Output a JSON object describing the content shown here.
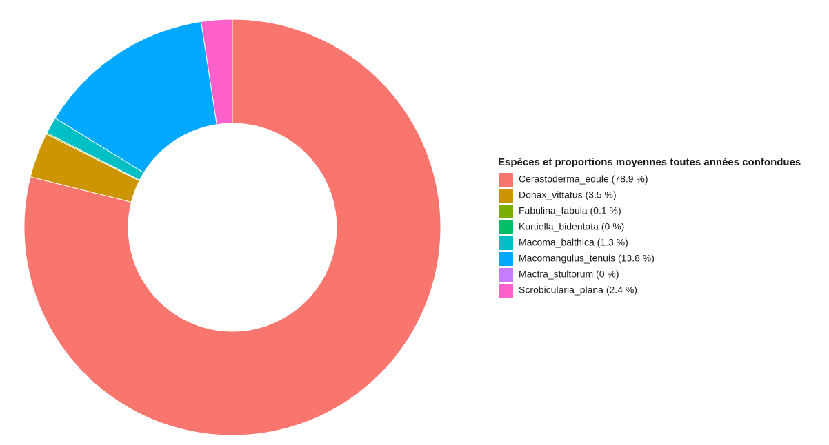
{
  "chart_data": {
    "type": "donut",
    "legend_title": "Espèces et proportions moyennes toutes années confondues",
    "categories": [
      "Cerastoderma_edule (78.9 %)",
      "Donax_vittatus (3.5 %)",
      "Fabulina_fabula (0.1 %)",
      "Kurtiella_bidentata (0 %)",
      "Macoma_balthica (1.3 %)",
      "Macomangulus_tenuis (13.8 %)",
      "Mactra_stultorum (0 %)",
      "Scrobicularia_plana (2.4 %)"
    ],
    "values": [
      78.9,
      3.5,
      0.1,
      0,
      1.3,
      13.8,
      0,
      2.4
    ],
    "colors": [
      "#F8766D",
      "#CD9600",
      "#7CAE00",
      "#00BE67",
      "#00BFC4",
      "#00A9FF",
      "#C77CFF",
      "#FF61CC"
    ],
    "legend_position": "right"
  }
}
